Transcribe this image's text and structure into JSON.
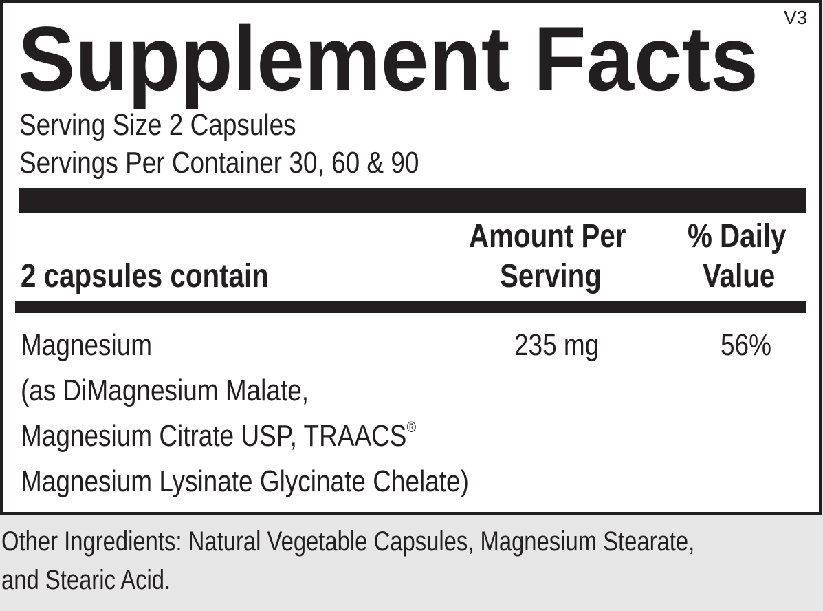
{
  "label": {
    "title": "Supplement Facts",
    "version": "V3",
    "serving_size": "Serving Size 2 Capsules",
    "servings_per_container": "Servings Per Container 30, 60 & 90",
    "header": {
      "contain": "2 capsules contain",
      "amount_line1": "Amount Per",
      "amount_line2": "Serving",
      "dv_line1": "% Daily",
      "dv_line2": "Value"
    },
    "rows": [
      {
        "name": "Magnesium",
        "detail_lines": [
          "(as DiMagnesium Malate,",
          "Magnesium Citrate USP, TRAACS",
          "Magnesium Lysinate Glycinate Chelate)"
        ],
        "registered": "®",
        "amount": "235 mg",
        "daily_value": "56%"
      }
    ]
  },
  "other_ingredients": {
    "line1": "Other Ingredients: Natural Vegetable Capsules, Magnesium Stearate,",
    "line2": "and Stearic Acid."
  },
  "colors": {
    "ink": "#231f20",
    "background": "#e6e6e6",
    "panel": "#ffffff"
  }
}
